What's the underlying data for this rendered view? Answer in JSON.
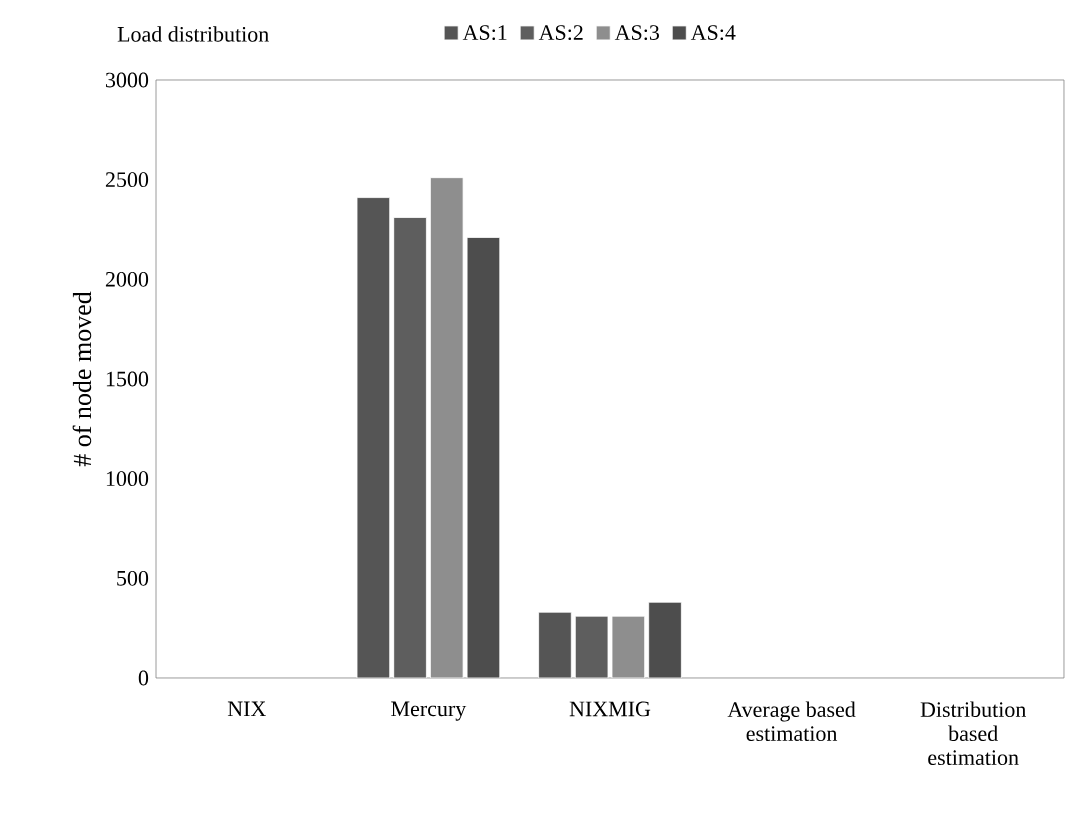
{
  "chart_data": {
    "type": "bar",
    "ylabel": "# of node moved",
    "legend_title": "Load distribution",
    "legend": "top",
    "categories": [
      "NIX",
      "Mercury",
      "NIXMIG",
      "Average based estimation",
      "Distribution based estimation"
    ],
    "series": [
      {
        "name": "AS:1",
        "color": "#555555",
        "values": [
          null,
          2410,
          330,
          null,
          null
        ]
      },
      {
        "name": "AS:2",
        "color": "#5e5e5e",
        "values": [
          null,
          2310,
          310,
          null,
          null
        ]
      },
      {
        "name": "AS:3",
        "color": "#8e8e8e",
        "values": [
          null,
          2510,
          310,
          null,
          null
        ]
      },
      {
        "name": "AS:4",
        "color": "#4d4d4d",
        "values": [
          null,
          2210,
          380,
          null,
          null
        ]
      }
    ],
    "ylim": [
      0,
      3000
    ],
    "yticks": [
      0,
      500,
      1000,
      1500,
      2000,
      2500,
      3000
    ],
    "grid": false
  }
}
